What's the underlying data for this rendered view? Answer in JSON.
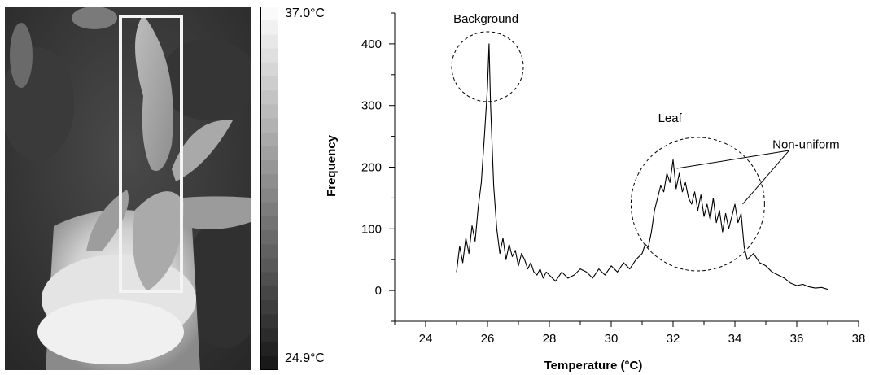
{
  "thermal_image": {
    "colorbar": {
      "max_label": "37.0°C",
      "min_label": "24.9°C",
      "max": 37.0,
      "min": 24.9
    }
  },
  "chart_data": {
    "type": "line",
    "xlabel": "Temperature (°C)",
    "ylabel": "Frequency",
    "xlim": [
      23,
      38
    ],
    "ylim": [
      -50,
      450
    ],
    "xticks": [
      24,
      26,
      28,
      30,
      32,
      34,
      36,
      38
    ],
    "yticks": [
      0,
      100,
      200,
      300,
      400
    ],
    "grid": false,
    "series": [
      {
        "x": [
          25.0,
          25.1,
          25.2,
          25.3,
          25.4,
          25.5,
          25.6,
          25.7,
          25.8,
          25.9,
          26.0,
          26.05,
          26.1,
          26.2,
          26.3,
          26.4,
          26.5,
          26.6,
          26.7,
          26.8,
          26.9,
          27.0,
          27.1,
          27.2,
          27.3,
          27.4,
          27.5,
          27.6,
          27.7,
          27.8,
          27.9,
          28.0,
          28.2,
          28.4,
          28.6,
          28.8,
          29.0,
          29.2,
          29.4,
          29.6,
          29.8,
          30.0,
          30.2,
          30.4,
          30.6,
          30.8,
          31.0,
          31.1,
          31.2,
          31.3,
          31.4,
          31.5,
          31.6,
          31.7,
          31.8,
          31.9,
          32.0,
          32.1,
          32.2,
          32.3,
          32.4,
          32.5,
          32.6,
          32.7,
          32.8,
          32.9,
          33.0,
          33.1,
          33.2,
          33.3,
          33.4,
          33.5,
          33.6,
          33.7,
          33.8,
          33.9,
          34.0,
          34.1,
          34.2,
          34.3,
          34.4,
          34.6,
          34.8,
          35.0,
          35.2,
          35.4,
          35.6,
          35.8,
          36.0,
          36.2,
          36.4,
          36.6,
          36.8,
          37.0
        ],
        "y": [
          30,
          72,
          45,
          85,
          60,
          105,
          80,
          135,
          175,
          250,
          330,
          400,
          300,
          170,
          100,
          60,
          85,
          50,
          75,
          55,
          65,
          40,
          60,
          50,
          35,
          45,
          30,
          25,
          35,
          20,
          30,
          25,
          15,
          30,
          20,
          25,
          35,
          30,
          20,
          35,
          25,
          40,
          30,
          45,
          35,
          50,
          60,
          75,
          70,
          95,
          130,
          150,
          170,
          160,
          190,
          175,
          212,
          165,
          190,
          160,
          175,
          150,
          140,
          160,
          130,
          155,
          120,
          140,
          115,
          150,
          110,
          130,
          95,
          125,
          100,
          120,
          140,
          110,
          125,
          70,
          50,
          60,
          45,
          40,
          30,
          25,
          20,
          12,
          8,
          10,
          6,
          4,
          5,
          2
        ]
      }
    ],
    "annotations": [
      {
        "text": "Background",
        "x": 25.95,
        "y": 441
      },
      {
        "text": "Leaf",
        "x": 31.9,
        "y": 280
      },
      {
        "text": "Non-uniform",
        "x": 36.3,
        "y": 237
      }
    ]
  }
}
